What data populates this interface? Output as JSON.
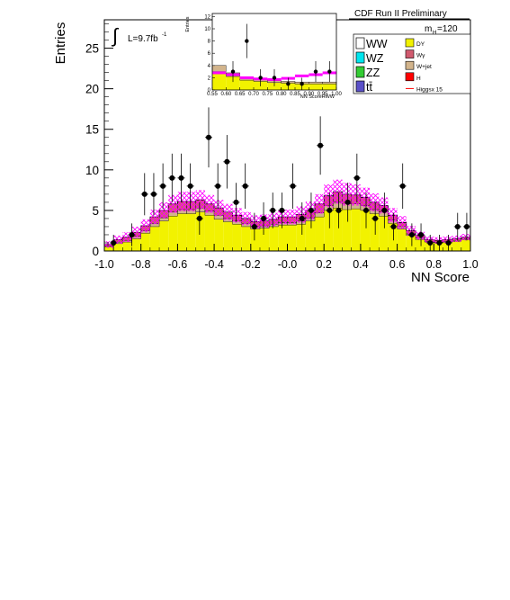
{
  "chart_data": {
    "type": "bar",
    "experiment_label": "CDF Run II Preliminary",
    "luminosity_label": "L=9.7fb",
    "luminosity_superscript": "-1",
    "integral_symbol": "∫",
    "mass_label": "m",
    "mass_subscript": "H",
    "mass_value": "=120",
    "xlabel": "NN Score",
    "ylabel": "Entries",
    "xlim": [
      -1.0,
      1.0
    ],
    "ylim": [
      0,
      28.5
    ],
    "grid": false,
    "legend_position": "top-right",
    "x_ticks": [
      -1.0,
      -0.8,
      -0.6,
      -0.4,
      -0.2,
      0.0,
      0.2,
      0.4,
      0.6,
      0.8,
      1.0
    ],
    "x_tick_labels": [
      "-1.0",
      "-0.8",
      "-0.6",
      "-0.4",
      "-0.2",
      "-0.0",
      "0.2",
      "0.4",
      "0.6",
      "0.8",
      "1.0"
    ],
    "y_ticks": [
      0,
      5,
      10,
      15,
      20,
      25
    ],
    "y_tick_labels": [
      "0",
      "5",
      "10",
      "15",
      "20",
      "25"
    ],
    "bin_edges": [
      -1.0,
      -0.95,
      -0.9,
      -0.85,
      -0.8,
      -0.75,
      -0.7,
      -0.65,
      -0.6,
      -0.55,
      -0.5,
      -0.45,
      -0.4,
      -0.35,
      -0.3,
      -0.25,
      -0.2,
      -0.15,
      -0.1,
      -0.05,
      0.0,
      0.05,
      0.1,
      0.15,
      0.2,
      0.25,
      0.3,
      0.35,
      0.4,
      0.45,
      0.5,
      0.55,
      0.6,
      0.65,
      0.7,
      0.75,
      0.8,
      0.85,
      0.9,
      0.95,
      1.0
    ],
    "series": [
      {
        "name": "DY",
        "color": "#f2f200",
        "values": [
          0.5,
          0.9,
          1.1,
          1.5,
          2.2,
          3.0,
          3.7,
          4.3,
          4.6,
          4.6,
          4.8,
          4.4,
          3.9,
          3.6,
          3.3,
          3.0,
          2.7,
          2.8,
          3.0,
          3.2,
          3.2,
          3.3,
          3.7,
          4.2,
          5.0,
          5.3,
          5.1,
          5.2,
          5.0,
          4.6,
          4.3,
          3.4,
          2.7,
          1.9,
          1.4,
          1.1,
          1.0,
          1.1,
          1.2,
          1.4
        ]
      },
      {
        "name": "W+jet",
        "color": "#d2b48c",
        "values": [
          0.1,
          0.2,
          0.2,
          0.3,
          0.3,
          0.4,
          0.4,
          0.5,
          0.5,
          0.5,
          0.5,
          0.5,
          0.5,
          0.4,
          0.4,
          0.4,
          0.3,
          0.3,
          0.3,
          0.3,
          0.3,
          0.4,
          0.4,
          0.5,
          0.6,
          0.7,
          0.7,
          0.6,
          0.6,
          0.5,
          0.5,
          0.4,
          0.3,
          0.2,
          0.2,
          0.1,
          0.1,
          0.1,
          0.1,
          0.1
        ]
      },
      {
        "name": "Wγ",
        "color": "#d05a6e",
        "values": [
          0.2,
          0.3,
          0.4,
          0.5,
          0.6,
          0.8,
          0.9,
          1.0,
          1.0,
          1.0,
          1.0,
          0.9,
          0.9,
          0.8,
          0.7,
          0.6,
          0.6,
          0.6,
          0.6,
          0.7,
          0.7,
          0.8,
          0.9,
          1.1,
          1.2,
          1.3,
          1.2,
          1.1,
          1.0,
          0.9,
          0.8,
          0.6,
          0.5,
          0.4,
          0.3,
          0.2,
          0.2,
          0.2,
          0.2,
          0.2
        ]
      }
    ],
    "uncertainty_band": {
      "color": "#ff00ff",
      "values": [
        0.4,
        0.5,
        0.6,
        0.7,
        0.8,
        0.9,
        1.0,
        1.1,
        1.2,
        1.2,
        1.2,
        1.1,
        1.0,
        1.0,
        0.9,
        0.8,
        0.8,
        0.8,
        0.8,
        0.9,
        0.9,
        1.0,
        1.1,
        1.2,
        1.4,
        1.5,
        1.4,
        1.3,
        1.2,
        1.1,
        1.0,
        0.9,
        0.8,
        0.6,
        0.5,
        0.4,
        0.4,
        0.4,
        0.4,
        0.4
      ]
    },
    "data_points": {
      "name": "Data",
      "x": [
        -0.95,
        -0.85,
        -0.78,
        -0.73,
        -0.68,
        -0.63,
        -0.58,
        -0.53,
        -0.48,
        -0.43,
        -0.38,
        -0.33,
        -0.28,
        -0.23,
        -0.18,
        -0.13,
        -0.08,
        -0.03,
        0.03,
        0.08,
        0.13,
        0.18,
        0.23,
        0.28,
        0.33,
        0.38,
        0.43,
        0.48,
        0.53,
        0.58,
        0.63,
        0.68,
        0.73,
        0.78,
        0.83,
        0.88,
        0.93,
        0.98
      ],
      "y": [
        1,
        2,
        7,
        7,
        8,
        9,
        9,
        8,
        4,
        14,
        8,
        11,
        6,
        8,
        3,
        4,
        5,
        5,
        8,
        4,
        5,
        13,
        5,
        5,
        6,
        9,
        5,
        4,
        5,
        3,
        8,
        2,
        2,
        1,
        1,
        1,
        3,
        3
      ],
      "yerr": [
        1.0,
        1.4,
        2.6,
        2.6,
        2.8,
        3.0,
        3.0,
        2.8,
        2.0,
        3.7,
        2.8,
        3.3,
        2.4,
        2.8,
        1.7,
        2.0,
        2.2,
        2.2,
        2.8,
        2.0,
        2.2,
        3.6,
        2.2,
        2.2,
        2.4,
        3.0,
        2.2,
        2.0,
        2.2,
        1.7,
        2.8,
        1.4,
        1.4,
        1.0,
        1.0,
        1.0,
        1.7,
        1.7
      ]
    },
    "legend_left": [
      {
        "label": "WW",
        "color": "#ffffff"
      },
      {
        "label": "WZ",
        "color": "#00e5ee"
      },
      {
        "label": "ZZ",
        "color": "#33cc33"
      },
      {
        "label": "tt̄",
        "color": "#5a50c8"
      }
    ],
    "legend_right": [
      {
        "label": "DY",
        "color": "#f2f200",
        "kind": "box"
      },
      {
        "label": "Wγ",
        "color": "#d05a6e",
        "kind": "box"
      },
      {
        "label": "W+jet",
        "color": "#d2b48c",
        "kind": "box"
      },
      {
        "label": "H",
        "color": "#ff0000",
        "kind": "box"
      },
      {
        "label": "Higgsx 15",
        "color": "#ff0000",
        "kind": "line"
      }
    ],
    "inset": {
      "xlabel": "NN ScoreHWW",
      "ylabel": "Entries",
      "xlim": [
        0.55,
        1.0
      ],
      "ylim": [
        0,
        12.5
      ],
      "x_ticks": [
        0.55,
        0.6,
        0.65,
        0.7,
        0.75,
        0.8,
        0.85,
        0.9,
        0.95,
        1.0
      ],
      "x_tick_labels": [
        "0.55",
        "0.60",
        "0.65",
        "0.70",
        "0.75",
        "0.80",
        "0.85",
        "0.90",
        "0.95",
        "1.00"
      ],
      "y_ticks": [
        0,
        2,
        4,
        6,
        8,
        10,
        12
      ],
      "y_tick_labels": [
        "0",
        "2",
        "4",
        "6",
        "8",
        "10",
        "12"
      ],
      "bin_edges": [
        0.55,
        0.6,
        0.65,
        0.7,
        0.75,
        0.8,
        0.85,
        0.9,
        0.95,
        1.0
      ],
      "bkg_total": [
        4.0,
        2.8,
        2.0,
        1.7,
        1.5,
        1.4,
        1.3,
        1.3,
        1.3
      ],
      "bkg_dy": [
        3.0,
        2.2,
        1.6,
        1.4,
        1.2,
        1.1,
        1.0,
        1.0,
        1.0
      ],
      "signal_band": [
        2.8,
        2.5,
        2.0,
        1.8,
        1.7,
        1.9,
        2.3,
        2.5,
        2.8
      ],
      "data_x": [
        0.625,
        0.675,
        0.725,
        0.775,
        0.825,
        0.875,
        0.925,
        0.975
      ],
      "data_y": [
        3,
        8,
        2,
        2,
        1,
        1,
        3,
        3
      ],
      "data_yerr": [
        1.7,
        2.8,
        1.4,
        1.4,
        1.0,
        1.0,
        1.7,
        1.7
      ]
    }
  }
}
